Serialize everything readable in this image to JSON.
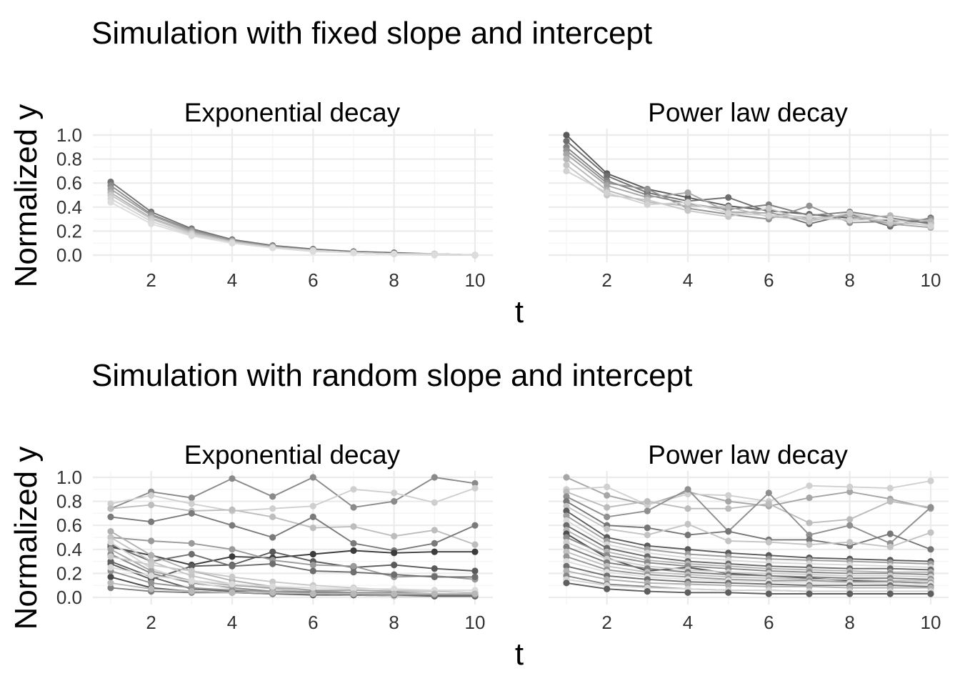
{
  "chart_data": [
    {
      "type": "line",
      "title": "Simulation with fixed slope and intercept",
      "panel": "Exponential decay",
      "xlabel": "t",
      "ylabel": "Normalized y",
      "xlim": [
        1,
        10
      ],
      "ylim": [
        0,
        1
      ],
      "xticks": [
        2,
        4,
        6,
        8,
        10
      ],
      "yticks": [
        0.0,
        0.2,
        0.4,
        0.6,
        0.8,
        1.0
      ],
      "grid": true,
      "x": [
        1,
        2,
        3,
        4,
        5,
        6,
        7,
        8,
        9,
        10
      ],
      "series": [
        {
          "color": "#737373",
          "values": [
            0.61,
            0.36,
            0.22,
            0.13,
            0.08,
            0.05,
            0.03,
            0.02,
            0.01,
            0.0
          ]
        },
        {
          "color": "#8c8c8c",
          "values": [
            0.58,
            0.34,
            0.21,
            0.12,
            0.07,
            0.04,
            0.02,
            0.01,
            0.01,
            0.0
          ]
        },
        {
          "color": "#a0a0a0",
          "values": [
            0.55,
            0.33,
            0.2,
            0.12,
            0.07,
            0.04,
            0.02,
            0.01,
            0.01,
            0.0
          ]
        },
        {
          "color": "#b3b3b3",
          "values": [
            0.52,
            0.31,
            0.19,
            0.11,
            0.07,
            0.04,
            0.02,
            0.01,
            0.01,
            0.0
          ]
        },
        {
          "color": "#c8c8c8",
          "values": [
            0.5,
            0.3,
            0.18,
            0.11,
            0.06,
            0.04,
            0.02,
            0.01,
            0.01,
            0.0
          ]
        },
        {
          "color": "#d4d4d4",
          "values": [
            0.47,
            0.28,
            0.17,
            0.1,
            0.06,
            0.04,
            0.02,
            0.01,
            0.01,
            0.0
          ]
        },
        {
          "color": "#dcdcdc",
          "values": [
            0.44,
            0.26,
            0.16,
            0.1,
            0.06,
            0.03,
            0.02,
            0.01,
            0.0,
            0.0
          ]
        }
      ]
    },
    {
      "type": "line",
      "title": "",
      "panel": "Power law decay",
      "xlabel": "t",
      "ylabel": "",
      "xlim": [
        1,
        10
      ],
      "ylim": [
        0,
        1
      ],
      "xticks": [
        2,
        4,
        6,
        8,
        10
      ],
      "yticks": [
        0.0,
        0.2,
        0.4,
        0.6,
        0.8,
        1.0
      ],
      "grid": true,
      "x": [
        1,
        2,
        3,
        4,
        5,
        6,
        7,
        8,
        9,
        10
      ],
      "series": [
        {
          "color": "#5a5a5a",
          "values": [
            1.0,
            0.68,
            0.55,
            0.48,
            0.41,
            0.37,
            0.34,
            0.31,
            0.29,
            0.27
          ]
        },
        {
          "color": "#6e6e6e",
          "values": [
            0.95,
            0.66,
            0.52,
            0.45,
            0.48,
            0.36,
            0.26,
            0.34,
            0.24,
            0.31
          ]
        },
        {
          "color": "#808080",
          "values": [
            0.9,
            0.62,
            0.5,
            0.43,
            0.38,
            0.42,
            0.33,
            0.36,
            0.31,
            0.26
          ]
        },
        {
          "color": "#929292",
          "values": [
            0.87,
            0.6,
            0.55,
            0.39,
            0.34,
            0.3,
            0.41,
            0.27,
            0.28,
            0.3
          ]
        },
        {
          "color": "#a5a5a5",
          "values": [
            0.84,
            0.58,
            0.48,
            0.52,
            0.36,
            0.35,
            0.31,
            0.33,
            0.26,
            0.23
          ]
        },
        {
          "color": "#b7b7b7",
          "values": [
            0.8,
            0.54,
            0.44,
            0.41,
            0.4,
            0.32,
            0.3,
            0.3,
            0.33,
            0.28
          ]
        },
        {
          "color": "#c6c6c6",
          "values": [
            0.75,
            0.5,
            0.46,
            0.37,
            0.32,
            0.39,
            0.28,
            0.35,
            0.27,
            0.25
          ]
        },
        {
          "color": "#d2d2d2",
          "values": [
            0.7,
            0.52,
            0.42,
            0.44,
            0.35,
            0.33,
            0.32,
            0.29,
            0.3,
            0.24
          ]
        }
      ]
    },
    {
      "type": "line",
      "title": "Simulation with random slope and intercept",
      "panel": "Exponential decay",
      "xlabel": "t",
      "ylabel": "Normalized y",
      "xlim": [
        1,
        10
      ],
      "ylim": [
        0,
        1
      ],
      "xticks": [
        2,
        4,
        6,
        8,
        10
      ],
      "yticks": [
        0.0,
        0.2,
        0.4,
        0.6,
        0.8,
        1.0
      ],
      "grid": true,
      "x": [
        1,
        2,
        3,
        4,
        5,
        6,
        7,
        8,
        9,
        10
      ],
      "series": [
        {
          "color": "#8a8a8a",
          "values": [
            0.74,
            0.88,
            0.83,
            0.99,
            0.84,
            1.0,
            0.75,
            0.8,
            1.0,
            0.95
          ]
        },
        {
          "color": "#cfcfcf",
          "values": [
            0.78,
            0.85,
            0.78,
            0.72,
            0.74,
            0.76,
            0.9,
            0.87,
            0.79,
            0.91
          ]
        },
        {
          "color": "#bdbdbd",
          "values": [
            0.74,
            0.77,
            0.72,
            0.73,
            0.67,
            0.58,
            0.59,
            0.51,
            0.56,
            0.44
          ]
        },
        {
          "color": "#7a7a7a",
          "values": [
            0.67,
            0.63,
            0.7,
            0.6,
            0.5,
            0.67,
            0.45,
            0.39,
            0.45,
            0.6
          ]
        },
        {
          "color": "#3c3c3c",
          "values": [
            0.42,
            0.35,
            0.27,
            0.34,
            0.33,
            0.36,
            0.39,
            0.37,
            0.38,
            0.38
          ]
        },
        {
          "color": "#5a5a5a",
          "values": [
            0.28,
            0.15,
            0.26,
            0.27,
            0.38,
            0.3,
            0.25,
            0.27,
            0.24,
            0.22
          ]
        },
        {
          "color": "#9a9a9a",
          "values": [
            0.5,
            0.47,
            0.45,
            0.4,
            0.31,
            0.27,
            0.26,
            0.17,
            0.18,
            0.15
          ]
        },
        {
          "color": "#6e6e6e",
          "values": [
            0.44,
            0.3,
            0.36,
            0.26,
            0.28,
            0.22,
            0.21,
            0.19,
            0.17,
            0.17
          ]
        },
        {
          "color": "#b0b0b0",
          "values": [
            0.55,
            0.35,
            0.22,
            0.14,
            0.09,
            0.06,
            0.04,
            0.03,
            0.02,
            0.01
          ]
        },
        {
          "color": "#c4c4c4",
          "values": [
            0.5,
            0.3,
            0.18,
            0.11,
            0.07,
            0.04,
            0.03,
            0.02,
            0.01,
            0.01
          ]
        },
        {
          "color": "#4a4a4a",
          "values": [
            0.17,
            0.08,
            0.05,
            0.04,
            0.03,
            0.02,
            0.02,
            0.01,
            0.01,
            0.01
          ]
        },
        {
          "color": "#858585",
          "values": [
            0.36,
            0.2,
            0.12,
            0.08,
            0.05,
            0.04,
            0.03,
            0.03,
            0.03,
            0.02
          ]
        },
        {
          "color": "#d6d6d6",
          "values": [
            0.46,
            0.24,
            0.13,
            0.07,
            0.04,
            0.03,
            0.02,
            0.01,
            0.01,
            0.01
          ]
        },
        {
          "color": "#a4a4a4",
          "values": [
            0.4,
            0.22,
            0.14,
            0.1,
            0.08,
            0.06,
            0.06,
            0.05,
            0.05,
            0.04
          ]
        },
        {
          "color": "#606060",
          "values": [
            0.3,
            0.17,
            0.07,
            0.05,
            0.03,
            0.03,
            0.02,
            0.02,
            0.01,
            0.01
          ]
        },
        {
          "color": "#c9c9c9",
          "values": [
            0.34,
            0.27,
            0.22,
            0.17,
            0.13,
            0.1,
            0.08,
            0.06,
            0.05,
            0.04
          ]
        },
        {
          "color": "#939393",
          "values": [
            0.22,
            0.12,
            0.08,
            0.06,
            0.05,
            0.05,
            0.04,
            0.04,
            0.03,
            0.03
          ]
        },
        {
          "color": "#dadada",
          "values": [
            0.25,
            0.18,
            0.14,
            0.11,
            0.09,
            0.08,
            0.07,
            0.07,
            0.06,
            0.06
          ]
        },
        {
          "color": "#7f7f7f",
          "values": [
            0.08,
            0.05,
            0.04,
            0.04,
            0.03,
            0.03,
            0.03,
            0.02,
            0.02,
            0.02
          ]
        },
        {
          "color": "#b8b8b8",
          "values": [
            0.12,
            0.07,
            0.05,
            0.04,
            0.04,
            0.03,
            0.03,
            0.03,
            0.03,
            0.03
          ]
        }
      ]
    },
    {
      "type": "line",
      "title": "",
      "panel": "Power law decay",
      "xlabel": "t",
      "ylabel": "",
      "xlim": [
        1,
        10
      ],
      "ylim": [
        0,
        1
      ],
      "xticks": [
        2,
        4,
        6,
        8,
        10
      ],
      "yticks": [
        0.0,
        0.2,
        0.4,
        0.6,
        0.8,
        1.0
      ],
      "grid": true,
      "x": [
        1,
        2,
        3,
        4,
        5,
        6,
        7,
        8,
        9,
        10
      ],
      "series": [
        {
          "color": "#a6a6a6",
          "values": [
            1.0,
            0.85,
            0.77,
            0.88,
            0.8,
            0.76,
            0.83,
            0.88,
            0.82,
            0.74
          ]
        },
        {
          "color": "#d0d0d0",
          "values": [
            0.9,
            0.92,
            0.77,
            0.86,
            0.85,
            0.8,
            0.93,
            0.92,
            0.91,
            0.97
          ]
        },
        {
          "color": "#bcbcbc",
          "values": [
            0.88,
            0.75,
            0.8,
            0.74,
            0.74,
            0.78,
            0.62,
            0.65,
            0.8,
            0.75
          ]
        },
        {
          "color": "#8f8f8f",
          "values": [
            0.84,
            0.67,
            0.72,
            0.9,
            0.55,
            0.87,
            0.52,
            0.6,
            0.45,
            0.75
          ]
        },
        {
          "color": "#767676",
          "values": [
            0.8,
            0.6,
            0.58,
            0.52,
            0.55,
            0.48,
            0.48,
            0.43,
            0.53,
            0.4
          ]
        },
        {
          "color": "#c4c4c4",
          "values": [
            0.76,
            0.57,
            0.52,
            0.61,
            0.47,
            0.46,
            0.44,
            0.46,
            0.42,
            0.54
          ]
        },
        {
          "color": "#5a5a5a",
          "values": [
            0.72,
            0.5,
            0.43,
            0.4,
            0.37,
            0.35,
            0.33,
            0.32,
            0.31,
            0.3
          ]
        },
        {
          "color": "#9e9e9e",
          "values": [
            0.68,
            0.47,
            0.4,
            0.36,
            0.34,
            0.32,
            0.31,
            0.3,
            0.29,
            0.28
          ]
        },
        {
          "color": "#d8d8d8",
          "values": [
            0.64,
            0.44,
            0.37,
            0.33,
            0.31,
            0.29,
            0.28,
            0.27,
            0.26,
            0.25
          ]
        },
        {
          "color": "#6a6a6a",
          "values": [
            0.6,
            0.41,
            0.34,
            0.3,
            0.28,
            0.26,
            0.25,
            0.24,
            0.24,
            0.23
          ]
        },
        {
          "color": "#b4b4b4",
          "values": [
            0.56,
            0.38,
            0.31,
            0.28,
            0.26,
            0.24,
            0.23,
            0.22,
            0.21,
            0.21
          ]
        },
        {
          "color": "#4e4e4e",
          "values": [
            0.53,
            0.33,
            0.22,
            0.25,
            0.2,
            0.18,
            0.16,
            0.14,
            0.13,
            0.12
          ]
        },
        {
          "color": "#8a8a8a",
          "values": [
            0.5,
            0.35,
            0.29,
            0.26,
            0.24,
            0.22,
            0.21,
            0.2,
            0.2,
            0.19
          ]
        },
        {
          "color": "#cdcdcd",
          "values": [
            0.46,
            0.32,
            0.26,
            0.23,
            0.21,
            0.2,
            0.19,
            0.18,
            0.18,
            0.17
          ]
        },
        {
          "color": "#7c7c7c",
          "values": [
            0.42,
            0.29,
            0.24,
            0.21,
            0.19,
            0.18,
            0.17,
            0.16,
            0.16,
            0.15
          ]
        },
        {
          "color": "#c0c0c0",
          "values": [
            0.38,
            0.26,
            0.21,
            0.19,
            0.17,
            0.16,
            0.15,
            0.15,
            0.14,
            0.14
          ]
        },
        {
          "color": "#959595",
          "values": [
            0.34,
            0.23,
            0.19,
            0.17,
            0.15,
            0.14,
            0.14,
            0.13,
            0.13,
            0.12
          ]
        },
        {
          "color": "#dedede",
          "values": [
            0.3,
            0.21,
            0.17,
            0.15,
            0.14,
            0.13,
            0.12,
            0.12,
            0.11,
            0.11
          ]
        },
        {
          "color": "#707070",
          "values": [
            0.26,
            0.18,
            0.15,
            0.13,
            0.12,
            0.11,
            0.1,
            0.1,
            0.1,
            0.09
          ]
        },
        {
          "color": "#b0b0b0",
          "values": [
            0.22,
            0.15,
            0.12,
            0.11,
            0.1,
            0.09,
            0.09,
            0.08,
            0.08,
            0.08
          ]
        },
        {
          "color": "#868686",
          "values": [
            0.18,
            0.11,
            0.09,
            0.07,
            0.06,
            0.06,
            0.05,
            0.05,
            0.05,
            0.05
          ]
        },
        {
          "color": "#d4d4d4",
          "values": [
            0.15,
            0.1,
            0.08,
            0.07,
            0.06,
            0.06,
            0.05,
            0.05,
            0.05,
            0.05
          ]
        },
        {
          "color": "#5f5f5f",
          "values": [
            0.12,
            0.07,
            0.05,
            0.04,
            0.04,
            0.03,
            0.03,
            0.03,
            0.03,
            0.03
          ]
        }
      ]
    }
  ]
}
